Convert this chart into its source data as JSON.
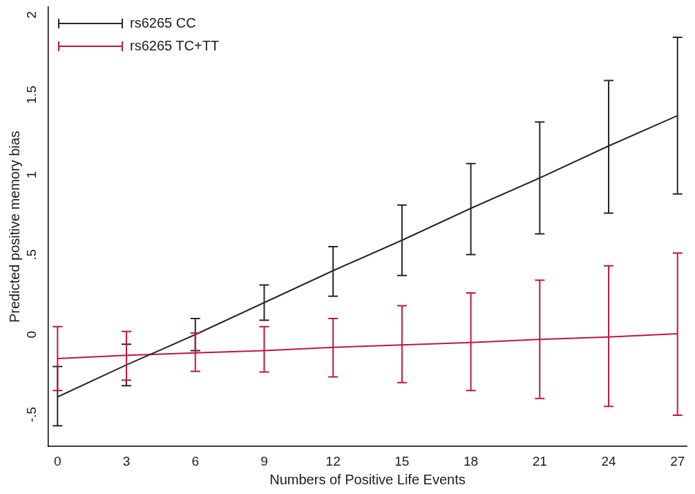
{
  "chart_data": {
    "type": "line",
    "xlabel": "Numbers of Positive Life Events",
    "ylabel": "Predicted positive memory bias",
    "x": [
      0,
      3,
      6,
      9,
      12,
      15,
      18,
      21,
      24,
      27
    ],
    "xlim": [
      -0.4,
      27.4
    ],
    "xticks": [
      0,
      3,
      6,
      9,
      12,
      15,
      18,
      21,
      24,
      27
    ],
    "ylim": [
      -0.7,
      2.05
    ],
    "yticks": [
      {
        "value": -0.5,
        "label": "-.5"
      },
      0,
      {
        "value": 0.5,
        "label": ".5"
      },
      1,
      1.5,
      2
    ],
    "grid": false,
    "legend": "top left",
    "marker": "none",
    "line_style": "solid",
    "series": [
      {
        "name": "rs6265 CC",
        "color": "#262626",
        "values": [
          -0.39,
          -0.19,
          0.0,
          0.2,
          0.4,
          0.59,
          0.79,
          0.98,
          1.18,
          1.37
        ],
        "errors": [
          [
            -0.57,
            -0.2
          ],
          [
            -0.32,
            -0.06
          ],
          [
            -0.1,
            0.1
          ],
          [
            0.09,
            0.31
          ],
          [
            0.24,
            0.55
          ],
          [
            0.37,
            0.81
          ],
          [
            0.5,
            1.07
          ],
          [
            0.63,
            1.33
          ],
          [
            0.76,
            1.59
          ],
          [
            0.88,
            1.86
          ]
        ]
      },
      {
        "name": "rs6265 TC+TT",
        "color": "#c0143c",
        "values": [
          -0.15,
          -0.13,
          -0.115,
          -0.1,
          -0.08,
          -0.065,
          -0.05,
          -0.03,
          -0.015,
          0.005
        ],
        "errors": [
          [
            -0.35,
            0.05
          ],
          [
            -0.285,
            0.02
          ],
          [
            -0.23,
            0.01
          ],
          [
            -0.235,
            0.05
          ],
          [
            -0.265,
            0.1
          ],
          [
            -0.3,
            0.18
          ],
          [
            -0.35,
            0.26
          ],
          [
            -0.4,
            0.34
          ],
          [
            -0.45,
            0.43
          ],
          [
            -0.505,
            0.51
          ]
        ]
      }
    ]
  }
}
